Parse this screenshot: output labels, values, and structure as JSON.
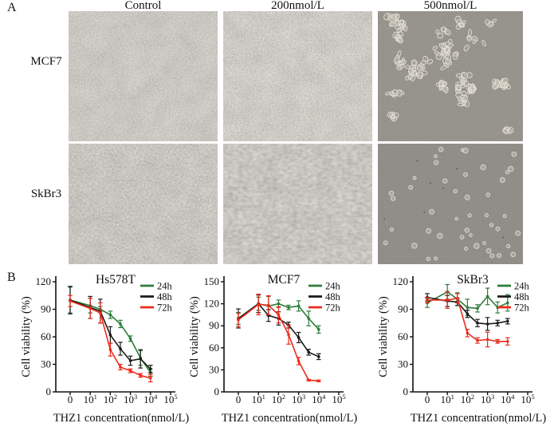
{
  "panel_a": {
    "label": "A",
    "column_headers": [
      "Control",
      "200nmol/L",
      "500nmol/L"
    ],
    "row_labels": [
      "MCF7",
      "SkBr3"
    ]
  },
  "panel_b": {
    "label": "B"
  },
  "colors": {
    "h24": "#2e7d3a",
    "h48": "#1a1a1a",
    "h72": "#ee2b1c"
  },
  "chart_data": [
    {
      "type": "line",
      "title": "Hs578T",
      "xlabel": "THZ1 concentration(nmol/L)",
      "ylabel": "Cell viability (%)",
      "ylim": [
        0,
        120
      ],
      "yticks": [
        0,
        30,
        60,
        90,
        120
      ],
      "xtick_labels": [
        "0",
        "10^1",
        "10^2",
        "10^3",
        "10^4",
        "10^5"
      ],
      "x": [
        0,
        10,
        31.6,
        100,
        316,
        1000,
        3162,
        10000
      ],
      "legend_position": "top-right",
      "grid": false,
      "series": [
        {
          "name": "24h",
          "color": "#2e7d3a",
          "values": [
            100,
            94,
            90,
            84,
            74,
            58,
            37,
            21
          ],
          "errors": [
            14,
            8,
            3,
            4,
            4,
            3,
            8,
            4
          ]
        },
        {
          "name": "48h",
          "color": "#1a1a1a",
          "values": [
            100,
            92,
            88,
            62,
            47,
            34,
            36,
            25
          ],
          "errors": [
            15,
            12,
            13,
            9,
            7,
            5,
            10,
            4
          ]
        },
        {
          "name": "72h",
          "color": "#ee2b1c",
          "values": [
            99,
            91,
            86,
            46,
            27,
            23,
            18,
            15
          ],
          "errors": [
            6,
            11,
            11,
            7,
            3,
            2,
            2,
            4
          ]
        }
      ]
    },
    {
      "type": "line",
      "title": "MCF7",
      "xlabel": "THZ1 concentration(nmol/L)",
      "ylabel": "Cell viability (%)",
      "ylim": [
        0,
        150
      ],
      "yticks": [
        0,
        30,
        60,
        90,
        120,
        150
      ],
      "xtick_labels": [
        "0",
        "10^1",
        "10^2",
        "10^3",
        "10^4",
        "10^5"
      ],
      "x": [
        0,
        10,
        31.6,
        100,
        316,
        1000,
        3162,
        10000
      ],
      "legend_position": "top-right",
      "grid": false,
      "series": [
        {
          "name": "24h",
          "color": "#2e7d3a",
          "values": [
            100,
            120,
            117,
            120,
            115,
            117,
            100,
            85
          ],
          "errors": [
            8,
            9,
            13,
            5,
            3,
            7,
            10,
            5
          ]
        },
        {
          "name": "48h",
          "color": "#1a1a1a",
          "values": [
            100,
            120,
            104,
            100,
            91,
            74,
            54,
            48
          ],
          "errors": [
            13,
            12,
            8,
            9,
            4,
            7,
            4,
            4
          ]
        },
        {
          "name": "72h",
          "color": "#ee2b1c",
          "values": [
            98,
            119,
            118,
            105,
            78,
            42,
            16,
            15
          ],
          "errors": [
            9,
            14,
            13,
            11,
            13,
            5,
            1,
            1
          ]
        }
      ]
    },
    {
      "type": "line",
      "title": "SkBr3",
      "xlabel": "THZ1 concentration(nmol/L)",
      "ylabel": "Cell viability (%)",
      "ylim": [
        0,
        120
      ],
      "yticks": [
        0,
        30,
        60,
        90,
        120
      ],
      "xtick_labels": [
        "0",
        "10^1",
        "10^2",
        "10^3",
        "10^4",
        "10^5"
      ],
      "x": [
        0,
        10,
        31.6,
        100,
        316,
        1000,
        3162,
        10000
      ],
      "legend_position": "top-right",
      "grid": false,
      "series": [
        {
          "name": "24h",
          "color": "#2e7d3a",
          "values": [
            97,
            109,
            101,
            92,
            91,
            104,
            92,
            97
          ],
          "errors": [
            5,
            8,
            7,
            9,
            4,
            9,
            6,
            9
          ]
        },
        {
          "name": "48h",
          "color": "#1a1a1a",
          "values": [
            103,
            99,
            98,
            85,
            75,
            74,
            75,
            77
          ],
          "errors": [
            4,
            6,
            4,
            4,
            4,
            7,
            3,
            3
          ]
        },
        {
          "name": "72h",
          "color": "#ee2b1c",
          "values": [
            100,
            100,
            102,
            64,
            56,
            57,
            55,
            55
          ],
          "errors": [
            3,
            9,
            5,
            4,
            3,
            8,
            2,
            4
          ]
        }
      ]
    }
  ]
}
